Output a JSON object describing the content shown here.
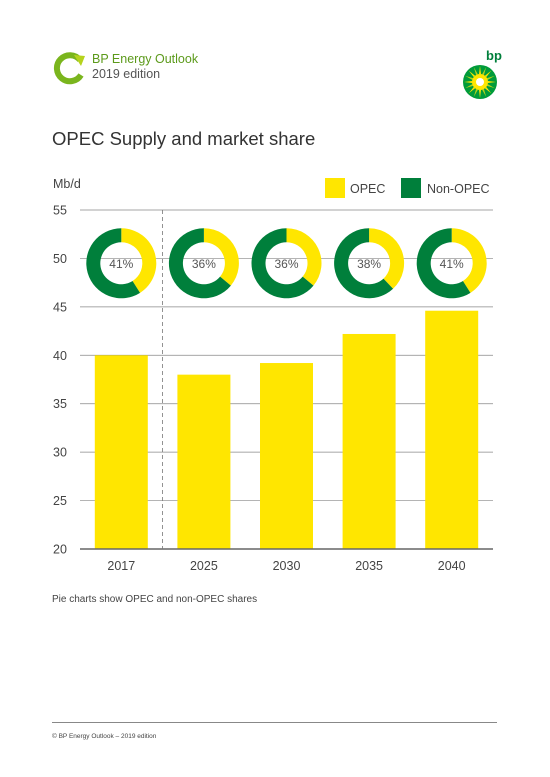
{
  "header": {
    "publication": "BP Energy Outlook",
    "edition": "2019 edition",
    "logo_icon": "bp-helios-icon",
    "mark_icon": "energy-outlook-arrow-icon"
  },
  "colors": {
    "opec": "#ffe600",
    "non_opec": "#007f3b",
    "grid": "#888888",
    "axis": "#666666"
  },
  "chart_data": {
    "type": "bar",
    "title": "OPEC Supply and market share",
    "ylabel": "Mb/d",
    "xlabel": "",
    "categories": [
      "2017",
      "2025",
      "2030",
      "2035",
      "2040"
    ],
    "series": [
      {
        "name": "OPEC",
        "values": [
          40.0,
          38.0,
          39.2,
          42.2,
          44.6
        ]
      }
    ],
    "ylim": [
      20,
      55
    ],
    "yticks": [
      20,
      25,
      30,
      35,
      40,
      45,
      50,
      55
    ],
    "grid": true,
    "legend": {
      "position": "top-right",
      "entries": [
        {
          "label": "OPEC",
          "color": "#ffe600"
        },
        {
          "label": "Non-OPEC",
          "color": "#007f3b"
        }
      ]
    },
    "pies": [
      {
        "year": "2017",
        "opec_share": 41,
        "label": "41%"
      },
      {
        "year": "2025",
        "opec_share": 36,
        "label": "36%"
      },
      {
        "year": "2030",
        "opec_share": 36,
        "label": "36%"
      },
      {
        "year": "2035",
        "opec_share": 38,
        "label": "38%"
      },
      {
        "year": "2040",
        "opec_share": 41,
        "label": "41%"
      }
    ],
    "divider_after": "2017"
  },
  "caption": "Pie charts show OPEC and non-OPEC shares",
  "footer": "© BP Energy Outlook – 2019 edition"
}
